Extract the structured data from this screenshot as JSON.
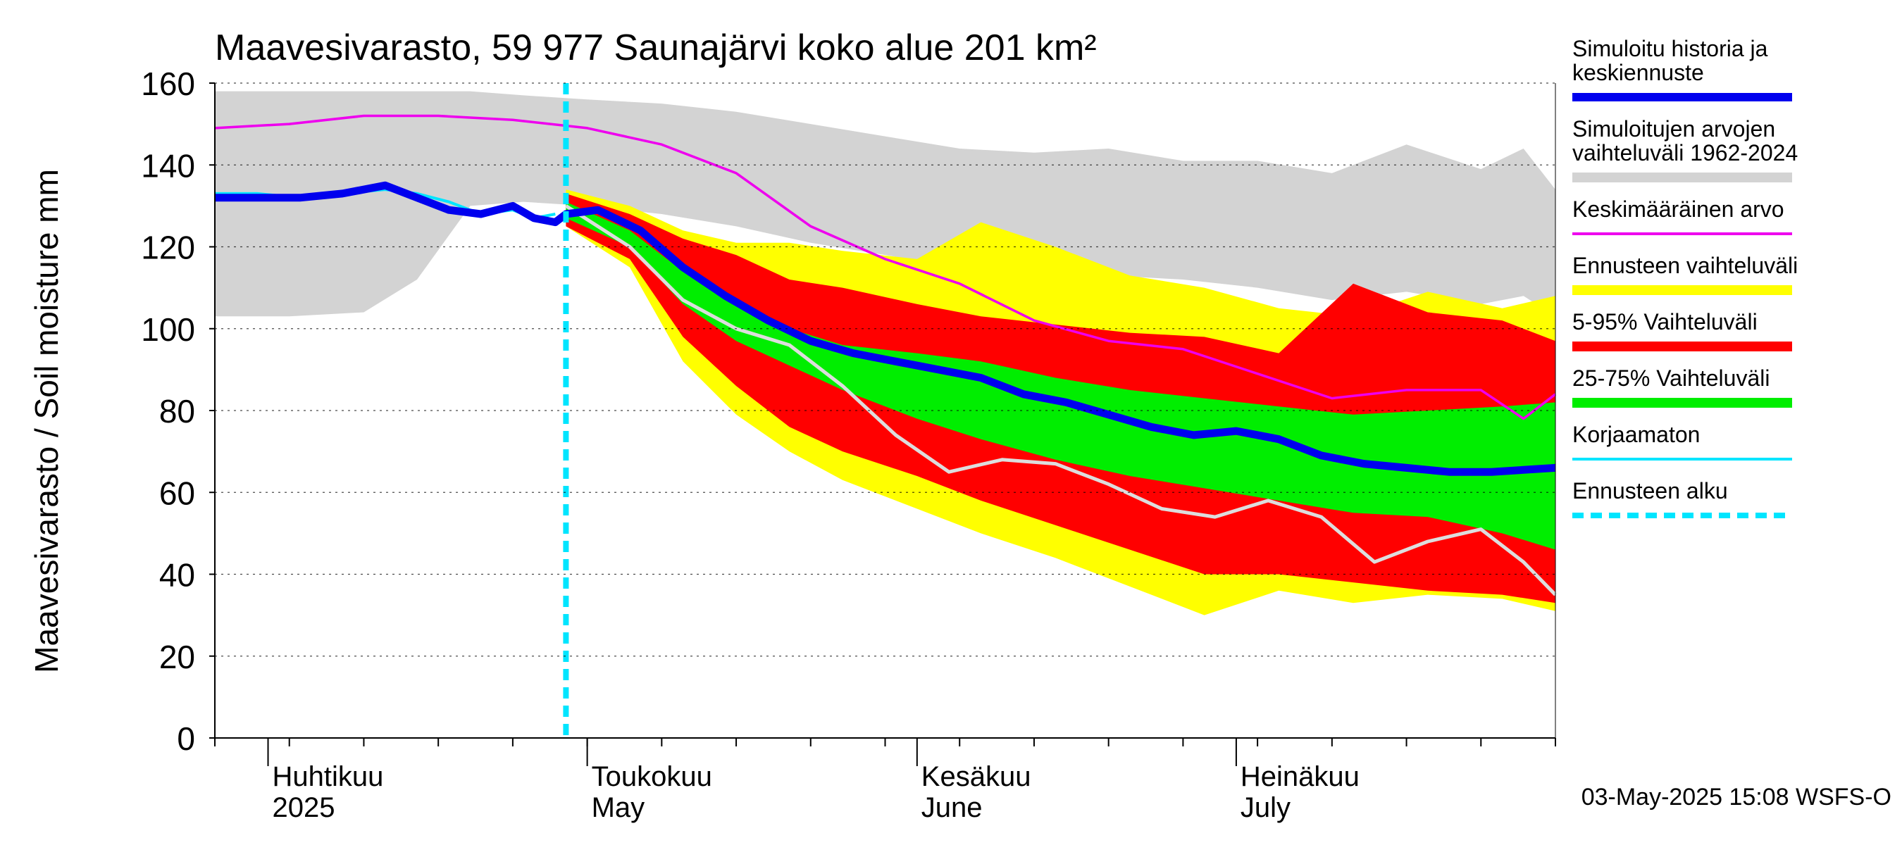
{
  "chart_data": {
    "type": "area",
    "title": "Maavesivarasto, 59 977 Saunajärvi koko alue 201 km²",
    "ylabel": "Maavesivarasto / Soil moisture   mm",
    "ylim": [
      0,
      160
    ],
    "yticks": [
      0,
      20,
      40,
      60,
      80,
      100,
      120,
      140,
      160
    ],
    "xlim": [
      "2025-03-27",
      "2025-07-31"
    ],
    "month_labels": [
      {
        "date": "2025-04-01",
        "fi": "Huhtikuu",
        "en": "2025"
      },
      {
        "date": "2025-05-01",
        "fi": "Toukokuu",
        "en": "May"
      },
      {
        "date": "2025-06-01",
        "fi": "Kesäkuu",
        "en": "June"
      },
      {
        "date": "2025-07-01",
        "fi": "Heinäkuu",
        "en": "July"
      }
    ],
    "forecast_start": "2025-04-29",
    "timestamp": "03-May-2025 15:08 WSFS-O",
    "colors": {
      "history": "#0000ee",
      "range_hist": "#d3d3d3",
      "mean": "#ee00ee",
      "range_fc": "#ffff00",
      "p5_95": "#ff0000",
      "p25_75": "#00ee00",
      "uncorrected": "#00e5ff",
      "forecast_start": "#00e5ff",
      "gray_line": "#dddddd"
    },
    "legend": [
      {
        "key": "history",
        "label": "Simuloitu historia ja keskiennuste",
        "style": "thick"
      },
      {
        "key": "range_hist",
        "label": "Simuloitujen arvojen vaihteluväli 1962-2024",
        "style": "band"
      },
      {
        "key": "mean",
        "label": "Keskimääräinen arvo",
        "style": "thin"
      },
      {
        "key": "range_fc",
        "label": "Ennusteen vaihteluväli",
        "style": "band"
      },
      {
        "key": "p5_95",
        "label": "5-95% Vaihteluväli",
        "style": "band"
      },
      {
        "key": "p25_75",
        "label": "25-75% Vaihteluväli",
        "style": "band"
      },
      {
        "key": "uncorrected",
        "label": "Korjaamaton",
        "style": "thin"
      },
      {
        "key": "forecast_start",
        "label": "Ennusteen alku",
        "style": "dashed"
      }
    ],
    "hist_range": {
      "x": [
        "2025-03-27",
        "2025-04-03",
        "2025-04-10",
        "2025-04-15",
        "2025-04-20",
        "2025-04-25",
        "2025-05-01",
        "2025-05-08",
        "2025-05-15",
        "2025-05-22",
        "2025-05-29",
        "2025-06-05",
        "2025-06-12",
        "2025-06-19",
        "2025-06-26",
        "2025-07-03",
        "2025-07-10",
        "2025-07-17",
        "2025-07-24",
        "2025-07-28",
        "2025-07-31"
      ],
      "upper": [
        158,
        158,
        158,
        158,
        158,
        157,
        156,
        155,
        153,
        150,
        147,
        144,
        143,
        144,
        141,
        141,
        138,
        145,
        139,
        144,
        134
      ],
      "lower": [
        103,
        103,
        104,
        112,
        130,
        131,
        130,
        128,
        125,
        121,
        118,
        115,
        114,
        113,
        112,
        110,
        107,
        109,
        106,
        108,
        103
      ]
    },
    "fc_range": {
      "x": [
        "2025-04-29",
        "2025-05-05",
        "2025-05-10",
        "2025-05-15",
        "2025-05-20",
        "2025-05-25",
        "2025-06-01",
        "2025-06-07",
        "2025-06-14",
        "2025-06-21",
        "2025-06-28",
        "2025-07-05",
        "2025-07-12",
        "2025-07-19",
        "2025-07-26",
        "2025-07-31"
      ],
      "upper": [
        134,
        130,
        124,
        121,
        121,
        119,
        117,
        126,
        120,
        113,
        110,
        105,
        103,
        109,
        105,
        108
      ],
      "lower": [
        125,
        115,
        92,
        79,
        70,
        63,
        56,
        50,
        44,
        37,
        30,
        36,
        33,
        35,
        34,
        31
      ]
    },
    "p5_95": {
      "x": [
        "2025-04-29",
        "2025-05-05",
        "2025-05-10",
        "2025-05-15",
        "2025-05-20",
        "2025-05-25",
        "2025-06-01",
        "2025-06-07",
        "2025-06-14",
        "2025-06-21",
        "2025-06-28",
        "2025-07-05",
        "2025-07-12",
        "2025-07-19",
        "2025-07-26",
        "2025-07-31"
      ],
      "upper": [
        133,
        128,
        122,
        118,
        112,
        110,
        106,
        103,
        101,
        99,
        98,
        94,
        111,
        104,
        102,
        97
      ],
      "lower": [
        125,
        117,
        98,
        86,
        76,
        70,
        64,
        58,
        52,
        46,
        40,
        40,
        38,
        36,
        35,
        33
      ]
    },
    "p25_75": {
      "x": [
        "2025-04-29",
        "2025-05-05",
        "2025-05-10",
        "2025-05-15",
        "2025-05-20",
        "2025-05-25",
        "2025-06-01",
        "2025-06-07",
        "2025-06-14",
        "2025-06-21",
        "2025-06-28",
        "2025-07-05",
        "2025-07-12",
        "2025-07-19",
        "2025-07-26",
        "2025-07-31"
      ],
      "upper": [
        131,
        124,
        114,
        106,
        100,
        96,
        94,
        92,
        88,
        85,
        83,
        81,
        79,
        80,
        81,
        82
      ],
      "lower": [
        127,
        120,
        106,
        97,
        91,
        85,
        78,
        73,
        68,
        64,
        61,
        58,
        55,
        54,
        50,
        46
      ]
    },
    "history": {
      "x": [
        "2025-03-27",
        "2025-03-31",
        "2025-04-04",
        "2025-04-08",
        "2025-04-12",
        "2025-04-15",
        "2025-04-18",
        "2025-04-21",
        "2025-04-24",
        "2025-04-26",
        "2025-04-28",
        "2025-04-29",
        "2025-05-02",
        "2025-05-06",
        "2025-05-10",
        "2025-05-14",
        "2025-05-18",
        "2025-05-22",
        "2025-05-26",
        "2025-05-30",
        "2025-06-03",
        "2025-06-07",
        "2025-06-11",
        "2025-06-15",
        "2025-06-19",
        "2025-06-23",
        "2025-06-27",
        "2025-07-01",
        "2025-07-05",
        "2025-07-09",
        "2025-07-13",
        "2025-07-17",
        "2025-07-21",
        "2025-07-25",
        "2025-07-31"
      ],
      "y": [
        132,
        132,
        132,
        133,
        135,
        132,
        129,
        128,
        130,
        127,
        126,
        128,
        129,
        124,
        115,
        108,
        102,
        97,
        94,
        92,
        90,
        88,
        84,
        82,
        79,
        76,
        74,
        75,
        73,
        69,
        67,
        66,
        65,
        65,
        66
      ]
    },
    "uncorrected": {
      "x": [
        "2025-03-27",
        "2025-03-31",
        "2025-04-04",
        "2025-04-08",
        "2025-04-12",
        "2025-04-15",
        "2025-04-18",
        "2025-04-21",
        "2025-04-24",
        "2025-04-26",
        "2025-04-28"
      ],
      "y": [
        133,
        133,
        132,
        133,
        134,
        133,
        131,
        128,
        129,
        127,
        128
      ]
    },
    "mean": {
      "x": [
        "2025-03-27",
        "2025-04-03",
        "2025-04-10",
        "2025-04-17",
        "2025-04-24",
        "2025-05-01",
        "2025-05-08",
        "2025-05-15",
        "2025-05-22",
        "2025-05-29",
        "2025-06-05",
        "2025-06-12",
        "2025-06-19",
        "2025-06-26",
        "2025-07-03",
        "2025-07-10",
        "2025-07-17",
        "2025-07-24",
        "2025-07-28",
        "2025-07-31"
      ],
      "y": [
        149,
        150,
        152,
        152,
        151,
        149,
        145,
        138,
        125,
        117,
        111,
        102,
        97,
        95,
        89,
        83,
        85,
        85,
        78,
        84
      ]
    },
    "gray_line": {
      "x": [
        "2025-04-29",
        "2025-05-05",
        "2025-05-10",
        "2025-05-15",
        "2025-05-20",
        "2025-05-25",
        "2025-05-30",
        "2025-06-04",
        "2025-06-09",
        "2025-06-14",
        "2025-06-19",
        "2025-06-24",
        "2025-06-29",
        "2025-07-04",
        "2025-07-09",
        "2025-07-14",
        "2025-07-19",
        "2025-07-24",
        "2025-07-28",
        "2025-07-31"
      ],
      "y": [
        130,
        120,
        107,
        100,
        96,
        86,
        74,
        65,
        68,
        67,
        62,
        56,
        54,
        58,
        54,
        43,
        48,
        51,
        43,
        35
      ]
    }
  }
}
